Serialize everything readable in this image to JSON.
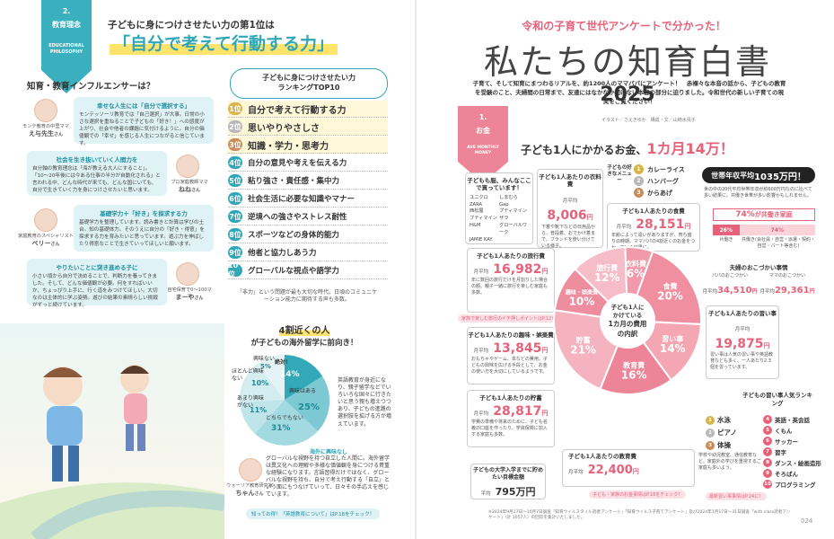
{
  "left": {
    "section_no": "2.",
    "section_name": "教育理念",
    "section_en": "EDUCATIONAL PHILOSOPHY",
    "headline_small": "子どもに身につけさせたい力の第1位は",
    "headline_big": "「自分で考えて行動する力」",
    "influencer_title": "知育・教育インフルエンサーは？",
    "influencers": [
      {
        "title": "幸せな人生には「自分で選択する」",
        "body": "モンテッソーリ教育では「自己選択」が大事。日常の小さな選択を重ねることで子どもの「好き！」への感度が上がり、社会や他者の課題に気付けるように。自分の価値観での「幸せ」を感じる人生につながると信じています。",
        "caption": "モンテ教育の中里ママ",
        "name": "え与先生",
        "suffix": "さん"
      },
      {
        "title": "社会を生き抜いていく人間力を",
        "body": "自分軸の教育理念は「海が教える大人にすること」。「10〜20年後には今ある仕事の半分が自動化される」と言われる中、どんな時代が来ても、どんな国にいても、自分で生きていく力を身につけさせたいと思います。",
        "caption": "プロ家庭教師ママ",
        "name": "ねね",
        "suffix": "さん"
      },
      {
        "title": "基礎学力＋「好き」を探求する力",
        "body": "基礎学力を整理しています。読み書きと計算は学びの土台。知の基礎体力。そのうえに自分の「好き・得意」を探求する力を育みたいと思っています。遊ぶ力を伸ばしたり得意なことで生きていってほしいと願います。",
        "caption": "家庭教育のスペシャリスト",
        "name": "ベリー",
        "suffix": "さん"
      },
      {
        "title": "やりたいことに突き進める子に",
        "body": "小さい頃から自分で決めることで、判断力を養ってきました。そして、どんな価値観が必要。何をすればいいか、ちょっぴり上手に、行く道をみつけてほしい。大切なのは主体的に学ぶ姿勢。遊びの結果の素晴らしい挑戦がずっと続けています。",
        "caption": "自宅保育で0〜100ママ",
        "name": "まーや",
        "suffix": "さん"
      }
    ],
    "ranking": {
      "title_line1": "子どもに身につけさせたい力",
      "title_line2": "ランキングTOP10",
      "items": [
        {
          "rank": "1位",
          "label": "自分で考えて行動する力"
        },
        {
          "rank": "2位",
          "label": "思いやりやさしさ"
        },
        {
          "rank": "3位",
          "label": "知識・学力・思考力"
        },
        {
          "rank": "4位",
          "label": "自分の意見や考えを伝える力"
        },
        {
          "rank": "5位",
          "label": "粘り強さ・責任感・集中力"
        },
        {
          "rank": "6位",
          "label": "社会生活に必要な知識やマナー"
        },
        {
          "rank": "7位",
          "label": "逆境への強さやストレス耐性"
        },
        {
          "rank": "8位",
          "label": "スポーツなどの身体的能力"
        },
        {
          "rank": "9位",
          "label": "他者と協力しあう力"
        },
        {
          "rank": "10位",
          "label": "グローバルな視点や語学力"
        }
      ],
      "footnote": "「非力」という問題が最も大切な時代。日頃のコミュニケーション能力に期待する声も多数。"
    },
    "study_abroad": {
      "title_line1": "4割近くの人",
      "title_line2": "が子どもの海外留学に前向き！",
      "labels": [
        "興味ない",
        "ほとんど興味ない",
        "あまり興味がない",
        "どちらでもない",
        "絶対！",
        "興味はある"
      ],
      "percents": [
        "5%",
        "10%",
        "11%",
        "31%",
        "14%",
        "25%"
      ],
      "side_note": "英語教育が身近になり、親子留学などでいろいろな国々に行きたいと思う親も増えつつあり、子どもの進路の選択肢を拡げる方が増えています。",
      "quote_title": "海外に興味なし",
      "quote": "グローバルな視野を持つ自立した人間に。海外留学は異文化への理解や多様な価値観を身につける貴重な経験になります。言語習得だけではなく、グローバルな視野を持ち、自分で考え行動する「自立」という面にもつなげていって、日々その手応えを感じています。",
      "person_caption": "ウォーリア教育研究家",
      "person_name": "ちゃん",
      "suffix": "さん",
      "link_tag": "知ってお得！「英語教育について」はP.18をチェック！"
    }
  },
  "right": {
    "kicker": "令和の子育て世代アンケートで分かった！",
    "title_main": "私たちの知育白書",
    "title_year": "2025",
    "lead": "子育て、そして知育にまつわるリアルを、約1200人のママパパにアンケート！　赤裸々な本音の話から、子どもの教育を受験のこと、夫婦間の日常まで、友達にはなかなか聞けない本音の部分に迫りました。令和世代の新しい子育ての現実をご覧ください！",
    "credit": "イラスト／さえきゆか　構成・文／山崎水鳥子",
    "section_no": "1.",
    "section_name": "お金",
    "section_en": "AVE MONTHLY MONEY",
    "headline": "子ども1人にかかるお金、",
    "headline_amount": "1カ月14万！",
    "clothes": {
      "title": "子どもも服、みんなここで買っています！",
      "brands": [
        "ユニクロ",
        "しまむら",
        "ZARA",
        "Gap",
        "西松屋",
        "プティマイン",
        "ブティマイン",
        "ザラ",
        "H&M",
        "グローバルワーク",
        "JAMIE KAY"
      ]
    },
    "clothing_cost": {
      "title": "子ども1人あたりの衣料費",
      "pre": "月平均",
      "amount": "8,006",
      "unit": "円",
      "note": "下着や靴下などの日用品から、普段着、おでかけ着まで。ブランドを使い分けている様子。"
    },
    "favorite_menu": {
      "title": "子どもの好きなメニュー",
      "items": [
        "カレーライス",
        "ハンバーグ",
        "からあげ"
      ],
      "ranks": [
        "1",
        "2",
        "3"
      ]
    },
    "income": {
      "title": "世帯年収平均",
      "amount": "1035万円！",
      "note": "世の中の20代平均世帯年収が約600万円なのに比べて多い結果に。共働き世帯が多い影響かもしれません。"
    },
    "food_cost": {
      "title": "子ども1人あたりの食費",
      "pre": "月平均",
      "amount": "28,151",
      "unit": "円",
      "note": "年齢によって違いがありますが、育ち盛りの時期。ママパパの4割近くのお金をつかっている結果に。"
    },
    "dual_income": {
      "pct": "74%",
      "label": "が共働き家庭",
      "left_pct": "26%",
      "left_label": "片働き",
      "right_pct": "74%",
      "right_label": "共働き(会社員・自営・派遣・契約・自営・パート等含む)"
    },
    "allowance": {
      "title": "夫婦のおこづかい事情",
      "papa_label": "パパのおこづかい",
      "papa_pre": "月平均",
      "papa_amount": "34,510",
      "mama_label": "ママのおこづかい",
      "mama_pre": "月平均",
      "mama_amount": "29,361",
      "unit": "円"
    },
    "travel_cost": {
      "title": "子ども1人あたりの旅行費",
      "pre": "月平均",
      "amount": "16,982",
      "unit": "円",
      "note": "年に数回の旅行だけを月割りした場合の額。親子一緒に旅行を楽しむ家庭も多数。"
    },
    "travel_tag": "家族で楽しむ旅行のイチ押しポイントはP.12をチェック！",
    "hobby_cost": {
      "title": "子ども1人あたりの趣味・娯楽費",
      "pre": "月平均",
      "amount": "13,845",
      "unit": "円",
      "note": "おもちゃやゲーム、本などの費用。子どもの興味を広げる手段として、お金の使い方を大切にしているようです。"
    },
    "lessons_cost": {
      "title": "子ども1人あたりの習い事",
      "pre": "月平均",
      "amount": "19,875",
      "unit": "円",
      "note": "習い事は人気の習い事や英語教育なども多く、一人あたり2.3個を習っています。"
    },
    "savings_cost": {
      "title": "子ども1人あたりの貯蓄",
      "pre": "月平均",
      "amount": "28,817",
      "unit": "円",
      "note": "学費の準備や将来のために、子ども名義の口座を作ったり、学資保険に加入する家庭も多数。"
    },
    "education_cost": {
      "title": "子ども1人あたりの教育費",
      "pre": "月平均",
      "amount": "22,400",
      "unit": "円",
      "note": "学校や幼児教室、通信教育など。家庭外の学びを重視するご家庭も多いよう。"
    },
    "education_tag": "子ども・家族のお金事情はP.18をチェック！",
    "college": {
      "title": "子どもの大学入学までに貯めたい目標金額",
      "pre": "平均",
      "amount": "795万円"
    },
    "lesson_rank": {
      "title": "子どもの習い事人気ランキング",
      "items": [
        {
          "rank": "1",
          "label": "水泳"
        },
        {
          "rank": "2",
          "label": "ピアノ"
        },
        {
          "rank": "3",
          "label": "体操"
        },
        {
          "rank": "4",
          "label": "英語・英会話"
        },
        {
          "rank": "5",
          "label": "くもん"
        },
        {
          "rank": "6",
          "label": "サッカー"
        },
        {
          "rank": "7",
          "label": "習字"
        },
        {
          "rank": "8",
          "label": "ダンス・絵画造形"
        },
        {
          "rank": "9",
          "label": "そろばん"
        },
        {
          "rank": "10",
          "label": "プログラミング"
        }
      ],
      "tag": "最新習い事事情はP.24に！"
    },
    "pie": {
      "center_line1": "子ども1人に",
      "center_line2": "かけている",
      "center_line3": "1カ月の費用",
      "center_line4": "の内訳",
      "slices": [
        {
          "label": "食費",
          "pct": "20%",
          "value": 20,
          "color": "#f08fa0"
        },
        {
          "label": "習い事",
          "pct": "14%",
          "value": 14,
          "color": "#f4a6b3"
        },
        {
          "label": "教育費",
          "pct": "16%",
          "value": 16,
          "color": "#ee8497"
        },
        {
          "label": "貯蓄",
          "pct": "21%",
          "value": 21,
          "color": "#f5b3bf"
        },
        {
          "label": "趣味・娯楽費",
          "pct": "10%",
          "value": 10,
          "color": "#ee8d9e"
        },
        {
          "label": "旅行費",
          "pct": "12%",
          "value": 12,
          "color": "#f6bcc7"
        },
        {
          "label": "衣料費",
          "pct": "6%",
          "value": 6,
          "color": "#f29aaa"
        }
      ]
    },
    "footer_note": "※2024年9月27日〜10月7日調査「知育ウイルスタイル読者アンケート」「知育ウイルス子育てアンケート」及び2024年1月17日〜31日調査「with class読者アンケート」（計 1057人）の回答を集計いたしました。",
    "page_no": "024"
  }
}
